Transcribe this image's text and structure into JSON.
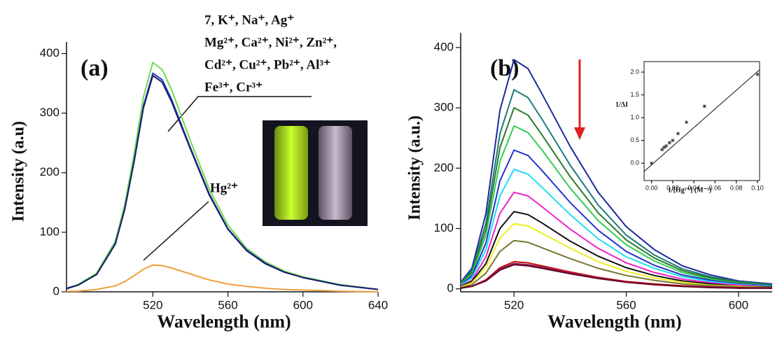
{
  "chart_data": [
    {
      "type": "line",
      "title": "(a)",
      "xlabel": "Wavelength (nm)",
      "ylabel": "Intensity (a.u)",
      "x": [
        474,
        480,
        490,
        500,
        505,
        510,
        515,
        520,
        525,
        530,
        540,
        550,
        560,
        570,
        580,
        590,
        600,
        620,
        640
      ],
      "series": [
        {
          "color": "#6cdc4c",
          "values": [
            6,
            12,
            31,
            85,
            146,
            231,
            327,
            385,
            373,
            339,
            254,
            173,
            112,
            73,
            50,
            35,
            25,
            12,
            4
          ]
        },
        {
          "color": "#2a3cc0",
          "values": [
            6,
            11,
            29,
            81,
            139,
            220,
            312,
            367,
            356,
            323,
            242,
            165,
            106,
            70,
            48,
            33,
            24,
            11,
            4
          ]
        },
        {
          "color": "#1a1f6a",
          "values": [
            5,
            11,
            29,
            80,
            138,
            218,
            309,
            363,
            352,
            319,
            240,
            163,
            105,
            69,
            47,
            33,
            24,
            11,
            4
          ]
        },
        {
          "color": "#f0a040",
          "values": [
            1,
            1,
            4,
            10,
            17,
            27,
            38,
            45,
            44,
            40,
            30,
            20,
            13,
            9,
            6,
            4,
            3,
            1,
            0
          ]
        }
      ],
      "xlim": [
        474,
        640
      ],
      "ylim": [
        0,
        410
      ],
      "xticks": [
        520,
        560,
        600,
        640
      ],
      "yticks": [
        0,
        100,
        200,
        300,
        400
      ],
      "annotations": [
        "7, K⁺, Na⁺, Ag⁺",
        "Mg²⁺, Ca²⁺, Ni²⁺, Zn²⁺,",
        "Cd²⁺, Cu²⁺, Pb²⁺, Al³⁺",
        "Fe³⁺, Cr³⁺",
        "Hg²⁺"
      ]
    },
    {
      "type": "line",
      "title": "(b)",
      "xlabel": "Wavelength (nm)",
      "ylabel": "Intensity (a.u.)",
      "x": [
        501,
        505,
        510,
        515,
        520,
        525,
        530,
        540,
        550,
        560,
        570,
        580,
        590,
        600,
        612
      ],
      "series": [
        {
          "color": "#1c2a9a",
          "values": [
            11,
            34,
            125,
            296,
            380,
            365,
            323,
            236,
            160,
            103,
            65,
            38,
            23,
            13,
            8
          ]
        },
        {
          "color": "#1f7a7a",
          "values": [
            10,
            30,
            109,
            257,
            330,
            317,
            281,
            205,
            139,
            89,
            56,
            33,
            20,
            12,
            7
          ]
        },
        {
          "color": "#2a7a2a",
          "values": [
            9,
            27,
            99,
            234,
            300,
            288,
            255,
            186,
            126,
            81,
            51,
            30,
            18,
            11,
            6
          ]
        },
        {
          "color": "#33cc55",
          "values": [
            8,
            24,
            89,
            211,
            270,
            259,
            230,
            167,
            113,
            73,
            46,
            27,
            16,
            9,
            5
          ]
        },
        {
          "color": "#2233cc",
          "values": [
            7,
            21,
            76,
            179,
            230,
            221,
            196,
            143,
            97,
            62,
            39,
            23,
            14,
            8,
            5
          ]
        },
        {
          "color": "#22ddee",
          "values": [
            6,
            18,
            65,
            154,
            198,
            190,
            168,
            123,
            83,
            53,
            34,
            20,
            12,
            7,
            4
          ]
        },
        {
          "color": "#ee22cc",
          "values": [
            5,
            14,
            53,
            125,
            160,
            154,
            136,
            99,
            67,
            43,
            27,
            16,
            10,
            6,
            3
          ]
        },
        {
          "color": "#111111",
          "values": [
            4,
            12,
            42,
            100,
            128,
            123,
            109,
            79,
            54,
            35,
            22,
            13,
            8,
            4,
            3
          ]
        },
        {
          "color": "#eeee22",
          "values": [
            3,
            10,
            36,
            84,
            108,
            104,
            92,
            67,
            45,
            29,
            18,
            11,
            6,
            4,
            2
          ]
        },
        {
          "color": "#777733",
          "values": [
            2,
            7,
            26,
            62,
            80,
            77,
            68,
            50,
            34,
            22,
            14,
            8,
            5,
            3,
            2
          ]
        },
        {
          "color": "#cc1111",
          "values": [
            1,
            4,
            15,
            35,
            45,
            43,
            38,
            28,
            19,
            12,
            8,
            5,
            3,
            2,
            1
          ]
        },
        {
          "color": "#882266",
          "values": [
            1,
            4,
            14,
            33,
            42,
            40,
            36,
            26,
            18,
            11,
            7,
            4,
            3,
            1,
            1
          ]
        },
        {
          "color": "#660022",
          "values": [
            1,
            4,
            13,
            31,
            40,
            38,
            34,
            25,
            17,
            11,
            7,
            4,
            2,
            1,
            1
          ]
        }
      ],
      "xlim": [
        501,
        612
      ],
      "ylim": [
        -5,
        415
      ],
      "xticks": [
        520,
        560,
        600
      ],
      "yticks": [
        0,
        100,
        200,
        300,
        400
      ]
    },
    {
      "type": "scatter",
      "xlabel": "1/[Hg²⁺] (M⁻¹)",
      "ylabel": "1/ΔI",
      "x": [
        0.0,
        0.01,
        0.012,
        0.014,
        0.017,
        0.02,
        0.025,
        0.033,
        0.05,
        0.1
      ],
      "values": [
        0.0,
        0.3,
        0.35,
        0.38,
        0.45,
        0.5,
        0.65,
        0.9,
        1.25,
        1.95
      ],
      "fit": {
        "x": [
          -0.007,
          0.102
        ],
        "values": [
          -0.18,
          2.05
        ]
      },
      "xlim": [
        -0.007,
        0.102
      ],
      "ylim": [
        -0.38,
        2.23
      ],
      "xticks": [
        {
          "value": 0,
          "label": "0.00"
        },
        {
          "value": 0.02,
          "label": "0.02"
        },
        {
          "value": 0.04,
          "label": "0.04"
        },
        {
          "value": 0.06,
          "label": "0.06"
        },
        {
          "value": 0.08,
          "label": "0.08"
        },
        {
          "value": 0.1,
          "label": "0.10"
        }
      ],
      "yticks": [
        {
          "value": 0,
          "label": "0.0"
        },
        {
          "value": 0.5,
          "label": "0.5"
        },
        {
          "value": 1,
          "label": "1.0"
        },
        {
          "value": 1.5,
          "label": "1.5"
        },
        {
          "value": 2,
          "label": "2.0"
        }
      ]
    }
  ]
}
